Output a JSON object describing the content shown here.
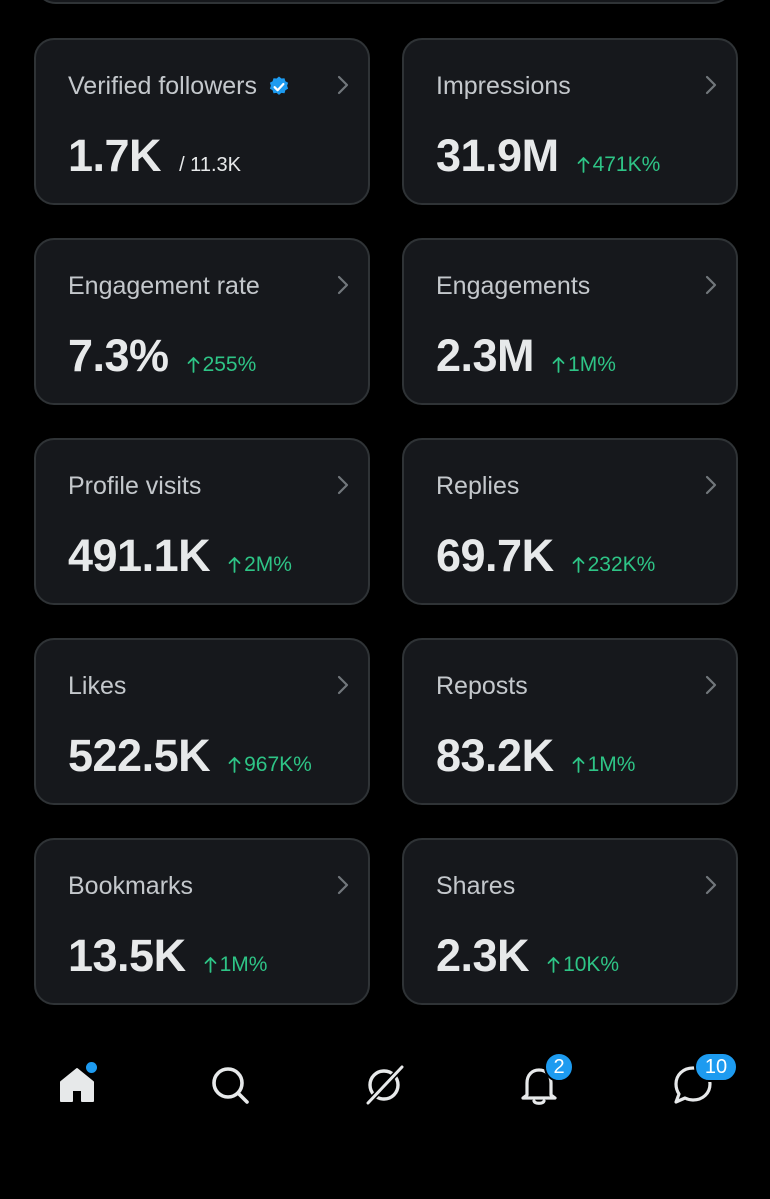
{
  "stats": [
    {
      "label": "Verified followers",
      "value": "1.7K",
      "sub": "/ 11.3K",
      "change": "",
      "verified": true
    },
    {
      "label": "Impressions",
      "value": "31.9M",
      "sub": "",
      "change": "471K%"
    },
    {
      "label": "Engagement rate",
      "value": "7.3%",
      "sub": "",
      "change": "255%"
    },
    {
      "label": "Engagements",
      "value": "2.3M",
      "sub": "",
      "change": "1M%"
    },
    {
      "label": "Profile visits",
      "value": "491.1K",
      "sub": "",
      "change": "2M%"
    },
    {
      "label": "Replies",
      "value": "69.7K",
      "sub": "",
      "change": "232K%"
    },
    {
      "label": "Likes",
      "value": "522.5K",
      "sub": "",
      "change": "967K%"
    },
    {
      "label": "Reposts",
      "value": "83.2K",
      "sub": "",
      "change": "1M%"
    },
    {
      "label": "Bookmarks",
      "value": "13.5K",
      "sub": "",
      "change": "1M%"
    },
    {
      "label": "Shares",
      "value": "2.3K",
      "sub": "",
      "change": "10K%"
    }
  ],
  "nav": {
    "notifications_badge": "2",
    "messages_badge": "10",
    "icons": [
      "home-icon",
      "search-icon",
      "grok-icon",
      "bell-icon",
      "messages-icon"
    ]
  },
  "colors": {
    "background": "#000000",
    "card": "#16181c",
    "border": "#2f3336",
    "positive": "#2ec486",
    "accent": "#1d9bf0"
  }
}
